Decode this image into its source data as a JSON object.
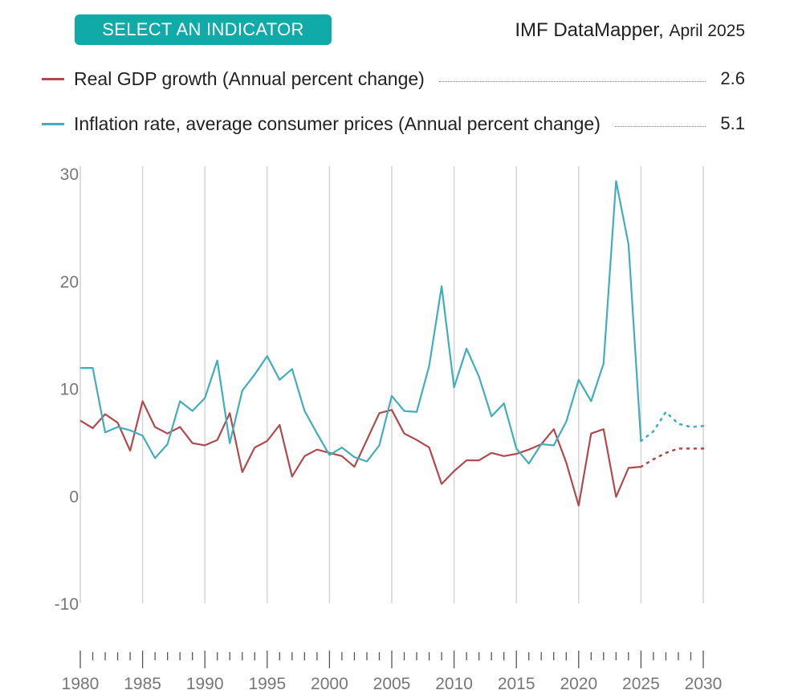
{
  "header": {
    "select_button": "SELECT AN INDICATOR",
    "source_name": "IMF DataMapper",
    "source_edition": "April 2025"
  },
  "colors": {
    "gdp": "#b04a4e",
    "inflation": "#41aebb",
    "grid": "#d4d4d4",
    "axis_text": "#777777",
    "button": "#10aaa8"
  },
  "chart_data": {
    "type": "line",
    "title": "",
    "xlabel": "",
    "ylabel": "",
    "xlim": [
      1980,
      2030
    ],
    "ylim": [
      -10,
      30
    ],
    "yticks": [
      30,
      20,
      10,
      0,
      -10
    ],
    "xticks": [
      1980,
      1985,
      1990,
      1995,
      2000,
      2005,
      2010,
      2015,
      2020,
      2025,
      2030
    ],
    "projection_start": 2025,
    "series": [
      {
        "name": "Real GDP growth (Annual percent change)",
        "legend_value": "2.6",
        "color_key": "gdp",
        "x": [
          1980,
          1981,
          1982,
          1983,
          1984,
          1985,
          1986,
          1987,
          1988,
          1989,
          1990,
          1991,
          1992,
          1993,
          1994,
          1995,
          1996,
          1997,
          1998,
          1999,
          2000,
          2001,
          2002,
          2003,
          2004,
          2005,
          2006,
          2007,
          2008,
          2009,
          2010,
          2011,
          2012,
          2013,
          2014,
          2015,
          2016,
          2017,
          2018,
          2019,
          2020,
          2021,
          2022,
          2023,
          2024,
          2025,
          2026,
          2027,
          2028,
          2029,
          2030
        ],
        "values": [
          7.0,
          6.3,
          7.6,
          6.8,
          4.2,
          8.8,
          6.4,
          5.8,
          6.4,
          4.9,
          4.7,
          5.2,
          7.7,
          2.2,
          4.5,
          5.1,
          6.6,
          1.8,
          3.7,
          4.3,
          4.0,
          3.7,
          2.7,
          5.2,
          7.7,
          8.0,
          5.8,
          5.2,
          4.5,
          1.1,
          2.3,
          3.3,
          3.3,
          4.0,
          3.7,
          3.9,
          4.3,
          4.8,
          6.2,
          3.1,
          -0.9,
          5.8,
          6.2,
          -0.1,
          2.6,
          2.7,
          3.4,
          4.0,
          4.4,
          4.4,
          4.4
        ]
      },
      {
        "name": "Inflation rate, average consumer prices (Annual percent change)",
        "legend_value": "5.1",
        "color_key": "inflation",
        "x": [
          1980,
          1981,
          1982,
          1983,
          1984,
          1985,
          1986,
          1987,
          1988,
          1989,
          1990,
          1991,
          1992,
          1993,
          1994,
          1995,
          1996,
          1997,
          1998,
          1999,
          2000,
          2001,
          2002,
          2003,
          2004,
          2005,
          2006,
          2007,
          2008,
          2009,
          2010,
          2011,
          2012,
          2013,
          2014,
          2015,
          2016,
          2017,
          2018,
          2019,
          2020,
          2021,
          2022,
          2023,
          2024,
          2025,
          2026,
          2027,
          2028,
          2029,
          2030
        ],
        "values": [
          11.9,
          11.9,
          5.9,
          6.4,
          6.1,
          5.6,
          3.5,
          4.8,
          8.8,
          7.9,
          9.1,
          12.6,
          4.9,
          9.8,
          11.3,
          13.0,
          10.8,
          11.8,
          7.9,
          5.8,
          3.8,
          4.5,
          3.6,
          3.2,
          4.7,
          9.3,
          7.9,
          7.8,
          12.1,
          19.5,
          10.1,
          13.7,
          11.1,
          7.4,
          8.6,
          4.4,
          3.0,
          4.8,
          4.7,
          6.9,
          10.8,
          8.8,
          12.3,
          29.3,
          23.4,
          5.1,
          6.0,
          7.8,
          6.7,
          6.4,
          6.5
        ]
      }
    ]
  }
}
